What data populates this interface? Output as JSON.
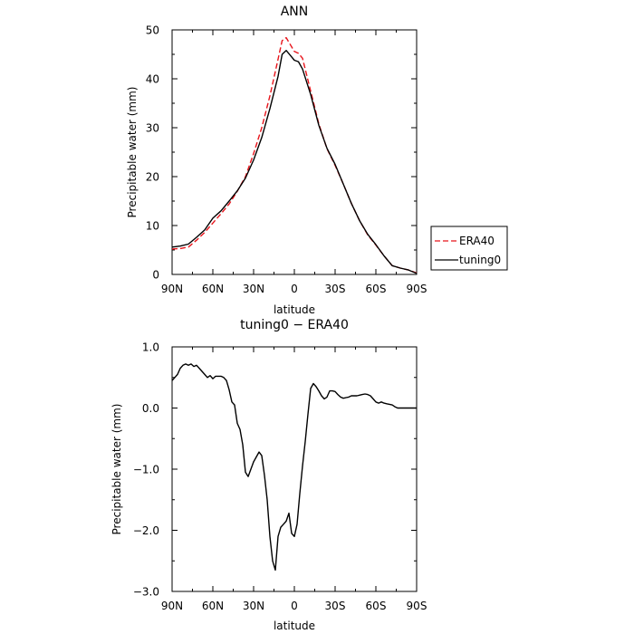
{
  "chart_data": [
    {
      "type": "line",
      "title": "ANN",
      "xlabel": "latitude",
      "ylabel": "Precipitable water  (mm)",
      "xlim": [
        90,
        -90
      ],
      "ylim": [
        0,
        50
      ],
      "x_ticks": [
        {
          "value": 90,
          "label": "90N"
        },
        {
          "value": 60,
          "label": "60N"
        },
        {
          "value": 30,
          "label": "30N"
        },
        {
          "value": 0,
          "label": "0"
        },
        {
          "value": -30,
          "label": "30S"
        },
        {
          "value": -60,
          "label": "60S"
        },
        {
          "value": -90,
          "label": "90S"
        }
      ],
      "y_ticks": [
        {
          "value": 0,
          "label": "0"
        },
        {
          "value": 10,
          "label": "10"
        },
        {
          "value": 20,
          "label": "20"
        },
        {
          "value": 30,
          "label": "30"
        },
        {
          "value": 40,
          "label": "40"
        },
        {
          "value": 50,
          "label": "50"
        }
      ],
      "grid": false,
      "legend": {
        "placement": "right-outside"
      },
      "series": [
        {
          "name": "ERA40",
          "color": "#e8141b",
          "dash": "dashed",
          "x": [
            90,
            84,
            78,
            72,
            66,
            60,
            54,
            48,
            42,
            36,
            30,
            24,
            18,
            12,
            9,
            6,
            3,
            0,
            -3,
            -6,
            -12,
            -18,
            -24,
            -30,
            -36,
            -42,
            -48,
            -54,
            -60,
            -66,
            -72,
            -78,
            -84,
            -90
          ],
          "y": [
            5.2,
            5.3,
            5.6,
            7.0,
            8.6,
            10.5,
            12.4,
            14.4,
            17.0,
            20.0,
            24.7,
            30.0,
            36.5,
            44.0,
            47.8,
            48.4,
            47.0,
            45.6,
            45.2,
            44.2,
            37.5,
            30.8,
            25.7,
            22.3,
            18.5,
            14.5,
            11.0,
            8.1,
            6.0,
            3.8,
            1.8,
            1.3,
            0.9,
            0.3
          ]
        },
        {
          "name": "tuning0",
          "color": "#000000",
          "dash": "solid",
          "x": [
            90,
            84,
            78,
            72,
            66,
            60,
            54,
            48,
            42,
            36,
            30,
            24,
            18,
            12,
            9,
            6,
            3,
            0,
            -3,
            -6,
            -12,
            -18,
            -24,
            -30,
            -36,
            -42,
            -48,
            -54,
            -60,
            -66,
            -72,
            -78,
            -84,
            -90
          ],
          "y": [
            5.6,
            5.8,
            6.2,
            7.6,
            9.1,
            11.5,
            13.0,
            15.0,
            17.1,
            19.7,
            23.4,
            28.0,
            33.9,
            40.5,
            45.0,
            45.8,
            44.8,
            43.8,
            43.5,
            42.0,
            36.8,
            30.5,
            25.8,
            22.5,
            18.5,
            14.5,
            11.0,
            8.2,
            6.1,
            3.8,
            1.8,
            1.3,
            0.9,
            0.2
          ]
        }
      ]
    },
    {
      "type": "line",
      "title": "tuning0 − ERA40",
      "xlabel": "latitude",
      "ylabel": "Precipitable water  (mm)",
      "xlim": [
        90,
        -90
      ],
      "ylim": [
        -3.0,
        1.0
      ],
      "x_ticks": [
        {
          "value": 90,
          "label": "90N"
        },
        {
          "value": 60,
          "label": "60N"
        },
        {
          "value": 30,
          "label": "30N"
        },
        {
          "value": 0,
          "label": "0"
        },
        {
          "value": -30,
          "label": "30S"
        },
        {
          "value": -60,
          "label": "60S"
        },
        {
          "value": -90,
          "label": "90S"
        }
      ],
      "y_ticks": [
        {
          "value": -3.0,
          "label": "−3.0"
        },
        {
          "value": -2.0,
          "label": "−2.0"
        },
        {
          "value": -1.0,
          "label": "−1.0"
        },
        {
          "value": 0.0,
          "label": "0.0"
        },
        {
          "value": 1.0,
          "label": "1.0"
        }
      ],
      "grid": false,
      "series": [
        {
          "color": "#000000",
          "dash": "solid",
          "x": [
            90,
            88,
            86,
            84,
            82,
            80,
            78,
            76,
            74,
            72,
            70,
            68,
            66,
            64,
            62,
            60,
            58,
            56,
            54,
            52,
            50,
            48,
            46,
            44,
            42,
            40,
            38,
            36,
            34,
            32,
            30,
            28,
            26,
            24,
            22,
            20,
            18,
            16,
            14,
            12,
            10,
            8,
            6,
            4,
            2,
            0,
            -2,
            -4,
            -6,
            -8,
            -10,
            -12,
            -14,
            -16,
            -18,
            -20,
            -22,
            -24,
            -26,
            -28,
            -30,
            -32,
            -34,
            -36,
            -38,
            -40,
            -42,
            -44,
            -46,
            -48,
            -50,
            -52,
            -54,
            -56,
            -58,
            -60,
            -62,
            -64,
            -66,
            -68,
            -70,
            -72,
            -74,
            -76,
            -78,
            -80,
            -82,
            -84,
            -86,
            -88,
            -90
          ],
          "y": [
            0.45,
            0.5,
            0.55,
            0.65,
            0.7,
            0.72,
            0.7,
            0.72,
            0.68,
            0.7,
            0.65,
            0.6,
            0.55,
            0.5,
            0.53,
            0.48,
            0.52,
            0.52,
            0.52,
            0.5,
            0.45,
            0.3,
            0.1,
            0.05,
            -0.25,
            -0.35,
            -0.6,
            -1.05,
            -1.12,
            -1.0,
            -0.88,
            -0.8,
            -0.72,
            -0.78,
            -1.1,
            -1.5,
            -2.1,
            -2.5,
            -2.65,
            -2.1,
            -1.95,
            -1.9,
            -1.85,
            -1.72,
            -2.05,
            -2.1,
            -1.9,
            -1.4,
            -0.95,
            -0.55,
            -0.1,
            0.32,
            0.4,
            0.35,
            0.28,
            0.2,
            0.15,
            0.18,
            0.28,
            0.28,
            0.27,
            0.22,
            0.18,
            0.16,
            0.17,
            0.18,
            0.2,
            0.2,
            0.2,
            0.21,
            0.22,
            0.23,
            0.22,
            0.2,
            0.15,
            0.1,
            0.08,
            0.1,
            0.08,
            0.07,
            0.06,
            0.05,
            0.02,
            0.0,
            0.0,
            0.0,
            0.0,
            0.0,
            0.0,
            0.0,
            0.0
          ]
        }
      ]
    }
  ]
}
